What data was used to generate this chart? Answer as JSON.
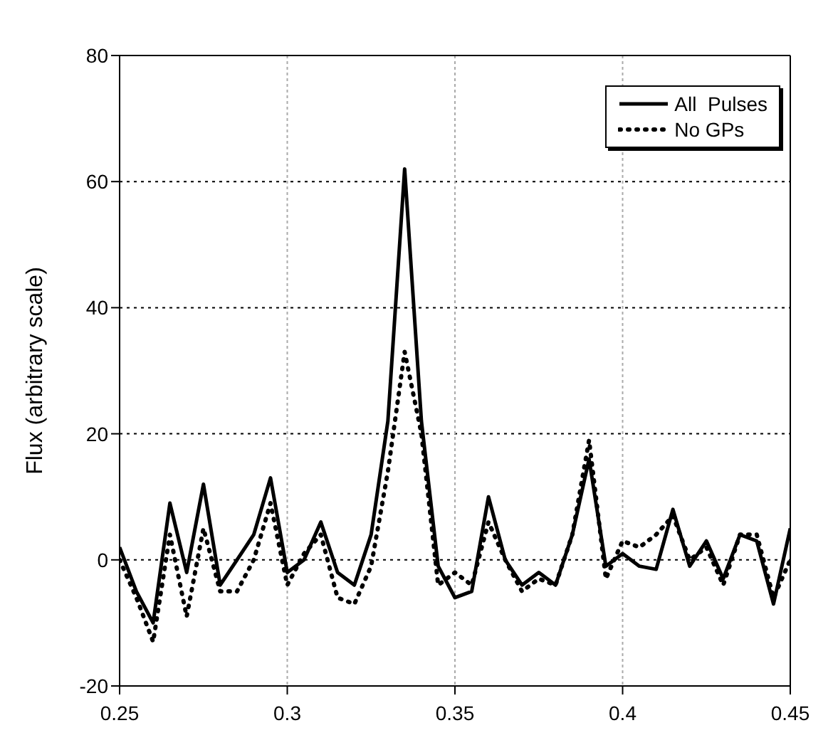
{
  "chart_data": {
    "type": "line",
    "ylabel": "Flux (arbitrary scale)",
    "x": [
      0.25,
      0.255,
      0.26,
      0.265,
      0.27,
      0.275,
      0.28,
      0.285,
      0.29,
      0.295,
      0.3,
      0.305,
      0.31,
      0.315,
      0.32,
      0.325,
      0.33,
      0.335,
      0.34,
      0.345,
      0.35,
      0.355,
      0.36,
      0.365,
      0.37,
      0.375,
      0.38,
      0.385,
      0.39,
      0.395,
      0.4,
      0.405,
      0.41,
      0.415,
      0.42,
      0.425,
      0.43,
      0.435,
      0.44,
      0.445,
      0.45
    ],
    "series": [
      {
        "name": "All  Pulses",
        "color": "#000000",
        "line_style": "solid",
        "values": [
          2,
          -5,
          -10,
          9,
          -2,
          12,
          -4,
          0,
          4,
          13,
          -2,
          0,
          6,
          -2,
          -4,
          4,
          22,
          62,
          22,
          -1,
          -6,
          -5,
          10,
          0,
          -4,
          -2,
          -4,
          4,
          16,
          -1,
          1,
          -1,
          -1.5,
          8,
          -1,
          3,
          -3,
          4,
          3,
          -7,
          5
        ]
      },
      {
        "name": "No GPs",
        "color": "#000000",
        "line_style": "dotted",
        "values": [
          0,
          -6,
          -13,
          4,
          -9,
          5,
          -5,
          -5,
          0,
          9,
          -4,
          1,
          4,
          -6,
          -7,
          -1,
          14,
          33,
          20,
          -4,
          -2,
          -4,
          6,
          0,
          -5,
          -3,
          -4,
          4,
          19,
          -3,
          3,
          2,
          4,
          7,
          0,
          2,
          -4,
          4,
          4,
          -6,
          0
        ]
      }
    ],
    "xlim": [
      0.25,
      0.45
    ],
    "xticks": [
      0.25,
      0.3,
      0.35,
      0.4,
      0.45
    ],
    "ylim": [
      -20,
      80
    ],
    "yticks": [
      -20,
      0,
      20,
      40,
      60,
      80
    ],
    "grid": true,
    "legend": "top right",
    "marker": "none"
  }
}
